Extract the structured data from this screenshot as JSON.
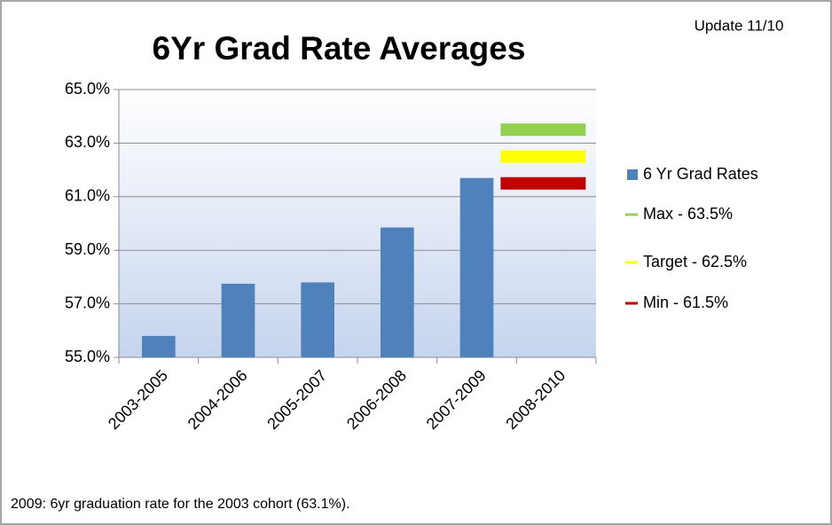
{
  "chart_data": {
    "type": "bar",
    "title": "6Yr Grad Rate Averages",
    "annotation": "Update 11/10",
    "footnote": "2009: 6yr graduation rate for the 2003 cohort (63.1%).",
    "categories": [
      "2003-2005",
      "2004-2006",
      "2005-2007",
      "2006-2008",
      "2007-2009",
      "2008-2010"
    ],
    "series": [
      {
        "name": "6 Yr Grad Rates",
        "type": "bar",
        "color": "#4f81bd",
        "values": [
          55.8,
          57.75,
          57.8,
          59.85,
          61.7,
          null
        ]
      },
      {
        "name": "Max - 63.5%",
        "type": "line",
        "color": "#92d050",
        "values": [
          null,
          null,
          null,
          null,
          null,
          63.5
        ]
      },
      {
        "name": "Target - 62.5%",
        "type": "line",
        "color": "#ffff00",
        "values": [
          null,
          null,
          null,
          null,
          null,
          62.5
        ]
      },
      {
        "name": "Min - 61.5%",
        "type": "line",
        "color": "#c00000",
        "values": [
          null,
          null,
          null,
          null,
          null,
          61.5
        ]
      }
    ],
    "ylim": [
      55,
      65
    ],
    "yticks": [
      {
        "value": 55,
        "label": "55.0%"
      },
      {
        "value": 57,
        "label": "57.0%"
      },
      {
        "value": 59,
        "label": "59.0%"
      },
      {
        "value": 61,
        "label": "61.0%"
      },
      {
        "value": 63,
        "label": "63.0%"
      },
      {
        "value": 65,
        "label": "65.0%"
      }
    ],
    "grid": true,
    "legend": "right"
  }
}
